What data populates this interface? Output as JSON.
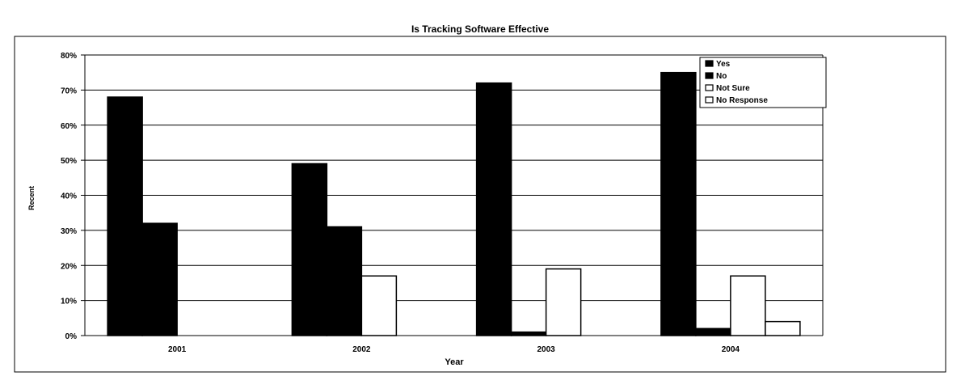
{
  "chart_data": {
    "type": "bar",
    "title": "Is Tracking Software Effective",
    "xlabel": "Year",
    "ylabel": "Recent",
    "ylim": [
      0,
      80
    ],
    "yticks": [
      "0%",
      "10%",
      "20%",
      "30%",
      "40%",
      "50%",
      "60%",
      "70%",
      "80%"
    ],
    "categories": [
      "2001",
      "2002",
      "2003",
      "2004"
    ],
    "grid": true,
    "legend_position": "top-right",
    "series": [
      {
        "name": "Yes",
        "values": [
          68,
          49,
          72,
          75
        ],
        "color": "#000000"
      },
      {
        "name": "No",
        "values": [
          32,
          31,
          1,
          2
        ],
        "color": "#000000"
      },
      {
        "name": "Not Sure",
        "values": [
          0,
          17,
          19,
          17
        ],
        "color": "#ffffff"
      },
      {
        "name": "No Response",
        "values": [
          0,
          0,
          0,
          4
        ],
        "color": "#ffffff"
      }
    ]
  }
}
